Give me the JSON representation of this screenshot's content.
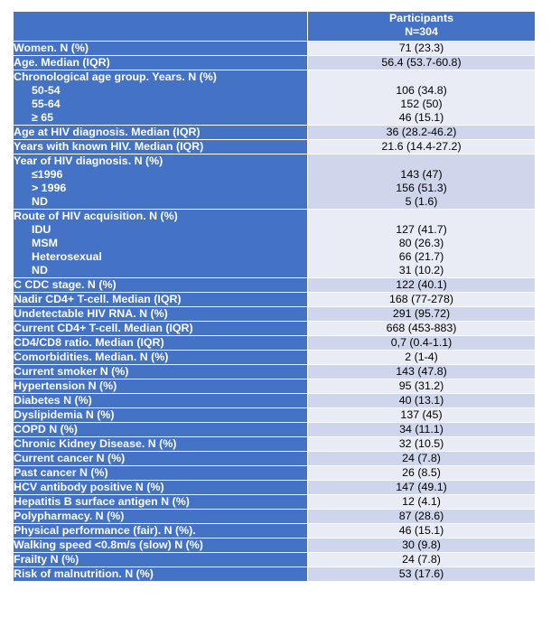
{
  "header": {
    "col1": "",
    "col2_line1": "Participants",
    "col2_line2": "N=304"
  },
  "rows": [
    {
      "label": "Women. N (%)",
      "value": "71 (23.3)"
    },
    {
      "label": "Age. Median (IQR)",
      "value": "56.4 (53.7-60.8)"
    },
    {
      "label": "Chronological age group. Years. N (%)",
      "subs": [
        {
          "label": "50-54",
          "value": "106 (34.8)"
        },
        {
          "label": "55-64",
          "value": "152 (50)"
        },
        {
          "label": "≥ 65",
          "value": "46 (15.1)"
        }
      ]
    },
    {
      "label": "Age at HIV diagnosis. Median (IQR)",
      "value": "36 (28.2-46.2)"
    },
    {
      "label": "Years with known HIV. Median (IQR)",
      "value": "21.6 (14.4-27.2)"
    },
    {
      "label": "Year of HIV diagnosis. N (%)",
      "subs": [
        {
          "label": "≤1996",
          "value": "143 (47)"
        },
        {
          "label": "> 1996",
          "value": "156 (51.3)"
        },
        {
          "label": "ND",
          "value": "5 (1.6)"
        }
      ]
    },
    {
      "label": "Route of HIV acquisition. N (%)",
      "subs": [
        {
          "label": "IDU",
          "value": "127 (41.7)"
        },
        {
          "label": "MSM",
          "value": "80 (26.3)"
        },
        {
          "label": "Heterosexual",
          "value": "66 (21.7)"
        },
        {
          "label": "ND",
          "value": "31 (10.2)"
        }
      ]
    },
    {
      "label": "C CDC stage.  N (%)",
      "value": "122 (40.1)"
    },
    {
      "label": "Nadir CD4+ T-cell. Median (IQR)",
      "value": "168 (77-278)"
    },
    {
      "label": "Undetectable HIV RNA. N (%)",
      "value": "291 (95.72)"
    },
    {
      "label": "Current CD4+ T-cell. Median (IQR)",
      "value": "668 (453-883)"
    },
    {
      "label": "CD4/CD8 ratio. Median (IQR)",
      "value": "0,7 (0.4-1.1)"
    },
    {
      "label": "Comorbidities. Median. N (%)",
      "value": "2 (1-4)"
    },
    {
      "label": "Current smoker N (%)",
      "value": "143 (47.8)"
    },
    {
      "label": "Hypertension N (%)",
      "value": "95 (31.2)"
    },
    {
      "label": "Diabetes N (%)",
      "value": "40 (13.1)"
    },
    {
      "label": "Dyslipidemia N (%)",
      "value": "137 (45)"
    },
    {
      "label": "COPD N (%)",
      "value": "34 (11.1)"
    },
    {
      "label": "Chronic Kidney Disease. N (%)",
      "value": "32 (10.5)"
    },
    {
      "label": "Current cancer N (%)",
      "value": "24 (7.8)"
    },
    {
      "label": "Past cancer N (%)",
      "value": "26 (8.5)"
    },
    {
      "label": "HCV antibody positive N (%)",
      "value": "147 (49.1)"
    },
    {
      "label": "Hepatitis B surface antigen N (%)",
      "value": "12 (4.1)"
    },
    {
      "label": "Polypharmacy. N (%)",
      "value": "87 (28.6)"
    },
    {
      "label": "Physical performance (fair). N (%).",
      "value": "46 (15.1)"
    },
    {
      "label": "Walking speed <0.8m/s (slow) N (%)",
      "value": "30 (9.8)"
    },
    {
      "label": "Frailty N (%)",
      "value": "24 (7.8)"
    },
    {
      "label": "Risk of malnutrition. N (%)",
      "value": "53 (17.6)"
    }
  ],
  "colors": {
    "label_bg": "#4472c4",
    "row_light": "#e9ebf5",
    "row_dark": "#cfd5ea",
    "label_text": "#ffffff"
  }
}
